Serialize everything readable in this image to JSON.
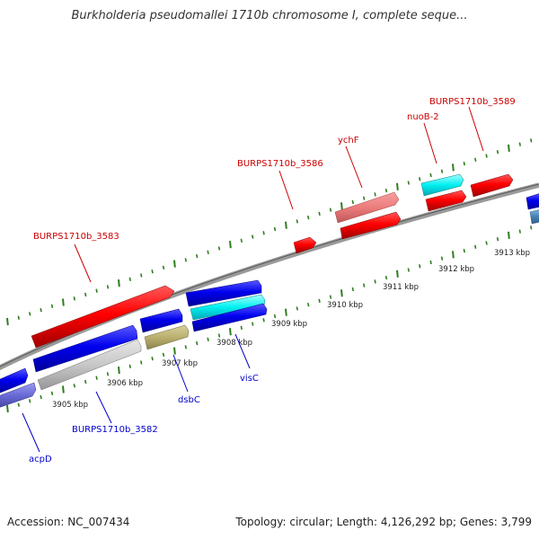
{
  "title": "Burkholderia pseudomallei 1710b chromosome I, complete seque...",
  "footer": {
    "accession": "Accession: NC_007434",
    "summary": "Topology: circular; Length: 4,126,292 bp; Genes: 3,799"
  },
  "colors": {
    "forward_label": "#cc0000",
    "reverse_label": "#0000cc",
    "tick": "#2e7d1f",
    "backbone": "#808080"
  },
  "scale_labels": [
    "3905 kbp",
    "3906 kbp",
    "3907 kbp",
    "3908 kbp",
    "3909 kbp",
    "3910 kbp",
    "3911 kbp",
    "3912 kbp",
    "3913 kbp"
  ],
  "forward_gene_labels": [
    "BURPS1710b_3583",
    "BURPS1710b_3586",
    "ychF",
    "nuoB-2",
    "BURPS1710b_3589"
  ],
  "reverse_gene_labels": [
    "acpD",
    "BURPS1710b_3582",
    "dsbC",
    "visC"
  ]
}
